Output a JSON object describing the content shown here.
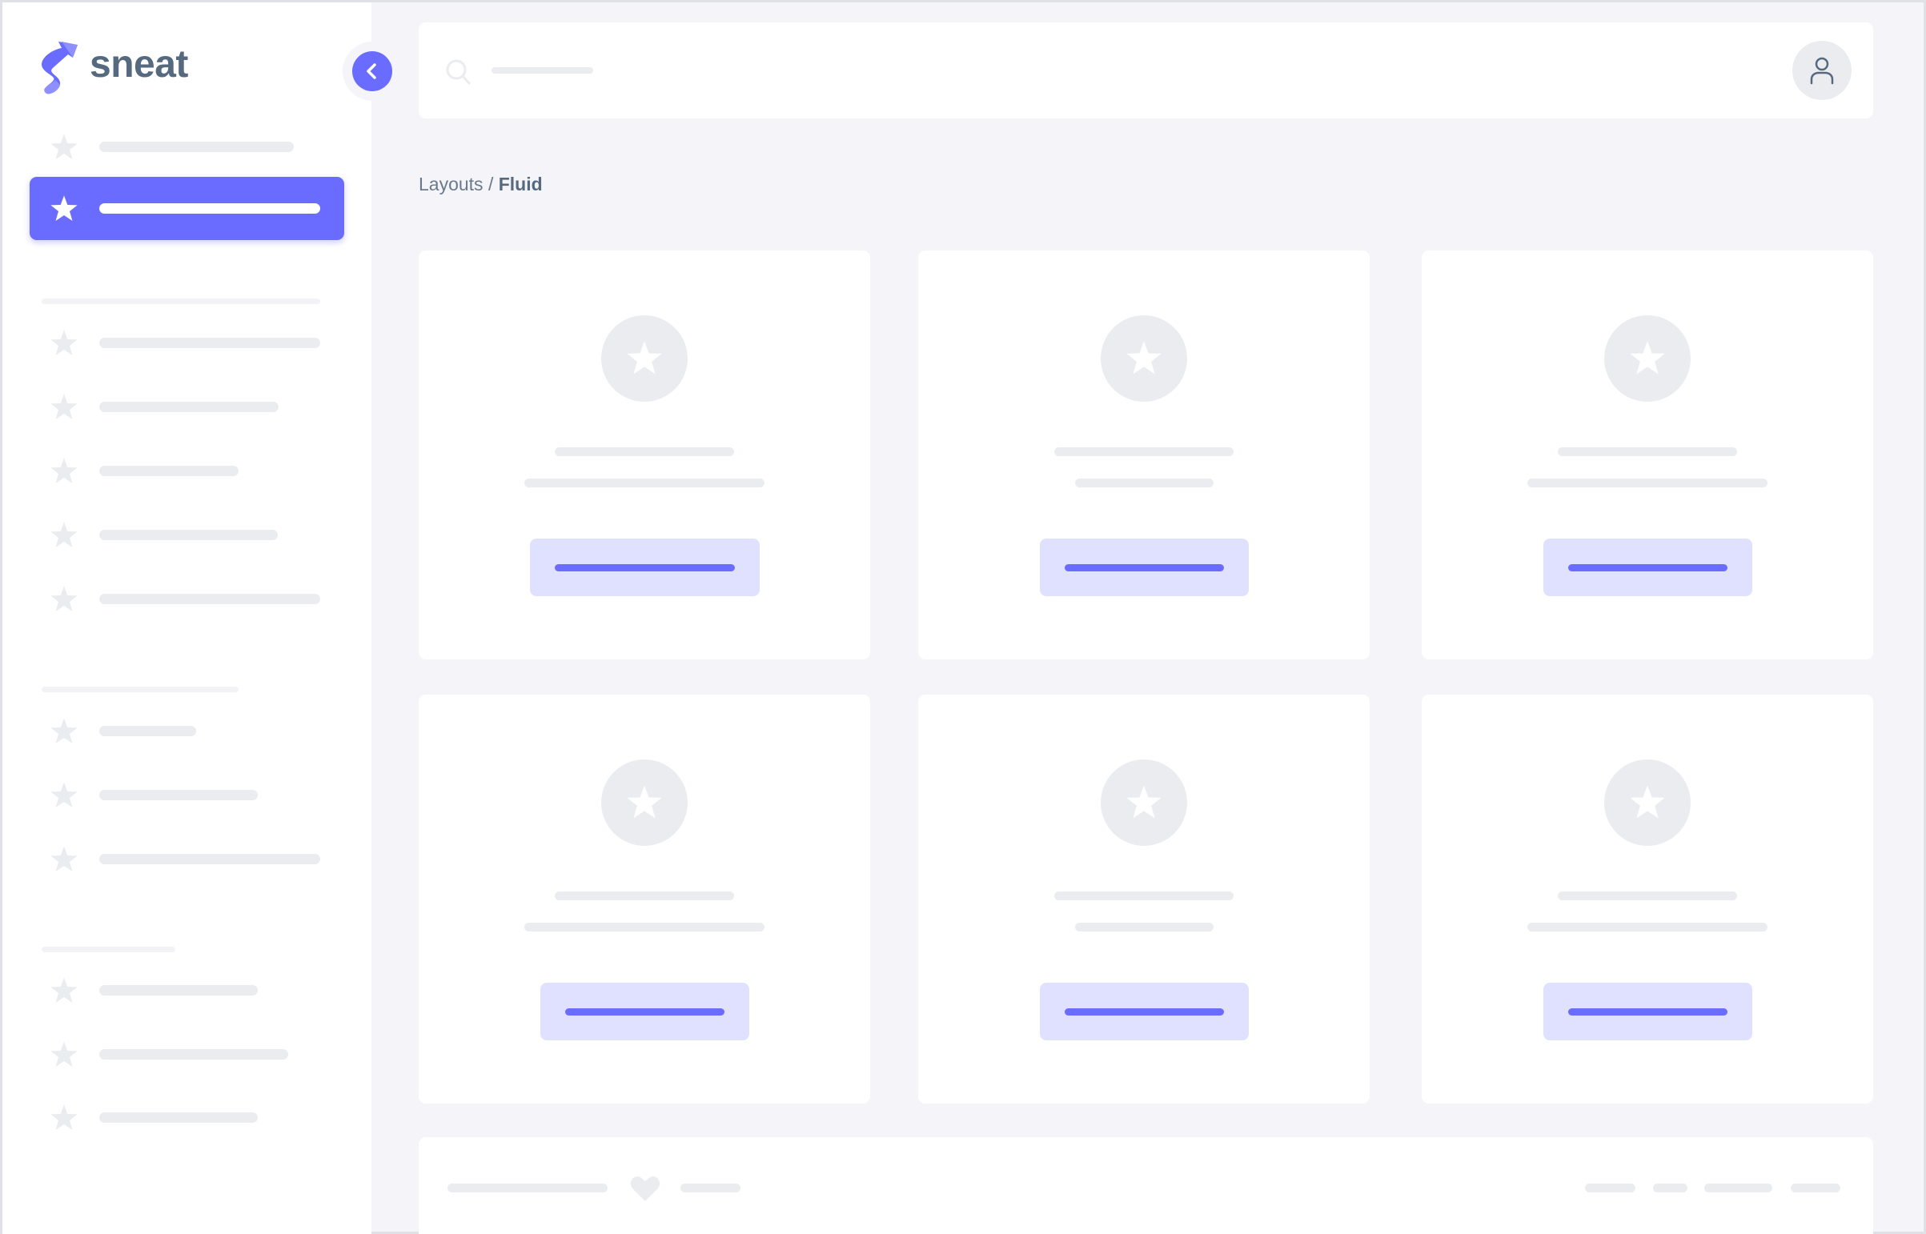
{
  "brand": {
    "name": "sneat",
    "logo_icon": "sneat-logo-icon"
  },
  "sidebar": {
    "toggle_icon": "chevron-left-icon",
    "item_icon": "star-icon"
  },
  "header": {
    "search_icon": "search-icon",
    "avatar_icon": "user-icon"
  },
  "breadcrumb": {
    "parent": "Layouts",
    "separator": " / ",
    "current": "Fluid"
  },
  "cards": {
    "icon": "star-icon",
    "count": 6
  },
  "footer": {
    "icon": "heart-icon"
  },
  "colors": {
    "primary": "#696cff",
    "primary_light": "#e0e1fe",
    "background": "#f5f5f9",
    "text": "#566a7f",
    "skeleton": "#ebecf0"
  }
}
